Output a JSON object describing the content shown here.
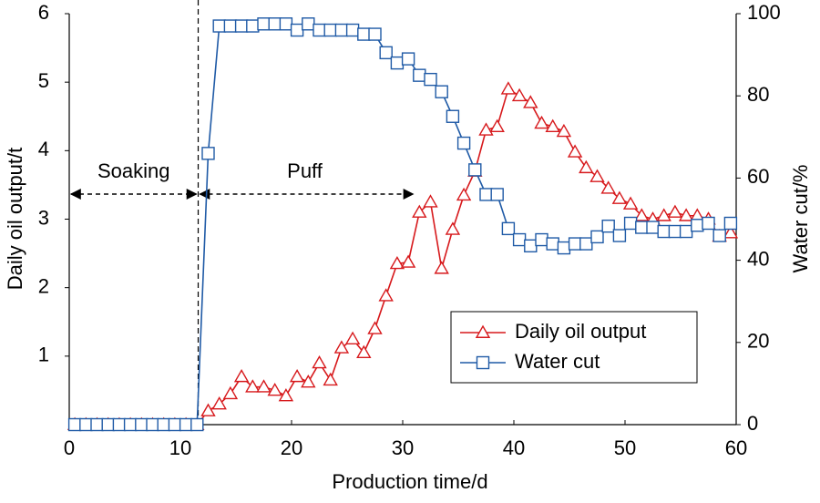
{
  "chart_data": {
    "type": "line",
    "x_label": "Production time/d",
    "y_label": "Daily oil output/t",
    "y2_label": "Water cut/%",
    "x": [
      0.5,
      1.5,
      2.5,
      3.5,
      4.5,
      5.5,
      6.5,
      7.5,
      8.5,
      9.5,
      10.5,
      11.5,
      12.5,
      13.5,
      14.5,
      15.5,
      16.5,
      17.5,
      18.5,
      19.5,
      20.5,
      21.5,
      22.5,
      23.5,
      24.5,
      25.5,
      26.5,
      27.5,
      28.5,
      29.5,
      30.5,
      31.5,
      32.5,
      33.5,
      34.5,
      35.5,
      36.5,
      37.5,
      38.5,
      39.5,
      40.5,
      41.5,
      42.5,
      43.5,
      44.5,
      45.5,
      46.5,
      47.5,
      48.5,
      49.5,
      50.5,
      51.5,
      52.5,
      53.5,
      54.5,
      55.5,
      56.5,
      57.5,
      58.5,
      59.5
    ],
    "series": [
      {
        "name": "Daily oil output",
        "color": "#d7191c",
        "marker": "triangle",
        "axis": "y",
        "values": [
          0,
          0,
          0,
          0,
          0,
          0,
          0,
          0,
          0,
          0,
          0,
          0,
          0.2,
          0.3,
          0.45,
          0.7,
          0.55,
          0.55,
          0.5,
          0.42,
          0.7,
          0.62,
          0.9,
          0.65,
          1.12,
          1.25,
          1.05,
          1.4,
          1.88,
          2.35,
          2.37,
          3.1,
          3.25,
          2.28,
          2.85,
          3.35,
          3.7,
          4.3,
          4.35,
          4.9,
          4.8,
          4.7,
          4.4,
          4.35,
          4.28,
          3.98,
          3.75,
          3.62,
          3.45,
          3.3,
          3.22,
          3.05,
          3.0,
          3.05,
          3.1,
          3.05,
          3.05,
          3.0,
          2.75,
          2.8
        ]
      },
      {
        "name": "Water cut",
        "color": "#1f5aa6",
        "marker": "square",
        "axis": "y2",
        "values": [
          0,
          0,
          0,
          0,
          0,
          0,
          0,
          0,
          0,
          0,
          0,
          0,
          66,
          97,
          97,
          97,
          97,
          97.5,
          97.5,
          97.5,
          96,
          97.5,
          96,
          96,
          96,
          96,
          95,
          95,
          90.5,
          88,
          89,
          85,
          84,
          81,
          75,
          68.5,
          62,
          56,
          56,
          47.7,
          45,
          43.5,
          45,
          44,
          43,
          44,
          44,
          45.7,
          48.3,
          46,
          49,
          48,
          48,
          47,
          47,
          47,
          48.5,
          49,
          46,
          49
        ]
      }
    ],
    "xlim": [
      0,
      60
    ],
    "xticks": [
      0,
      10,
      20,
      30,
      40,
      50,
      60
    ],
    "ylim": [
      0,
      6
    ],
    "yticks": [
      1,
      2,
      3,
      4,
      5,
      6
    ],
    "y2lim": [
      0,
      100
    ],
    "y2ticks": [
      0,
      20,
      40,
      60,
      80,
      100
    ],
    "annotations": [
      {
        "text": "Soaking",
        "x": [
          0,
          11.6
        ]
      },
      {
        "text": "Puff",
        "x": [
          11.6,
          31.1
        ]
      }
    ],
    "legend": "lower right"
  }
}
